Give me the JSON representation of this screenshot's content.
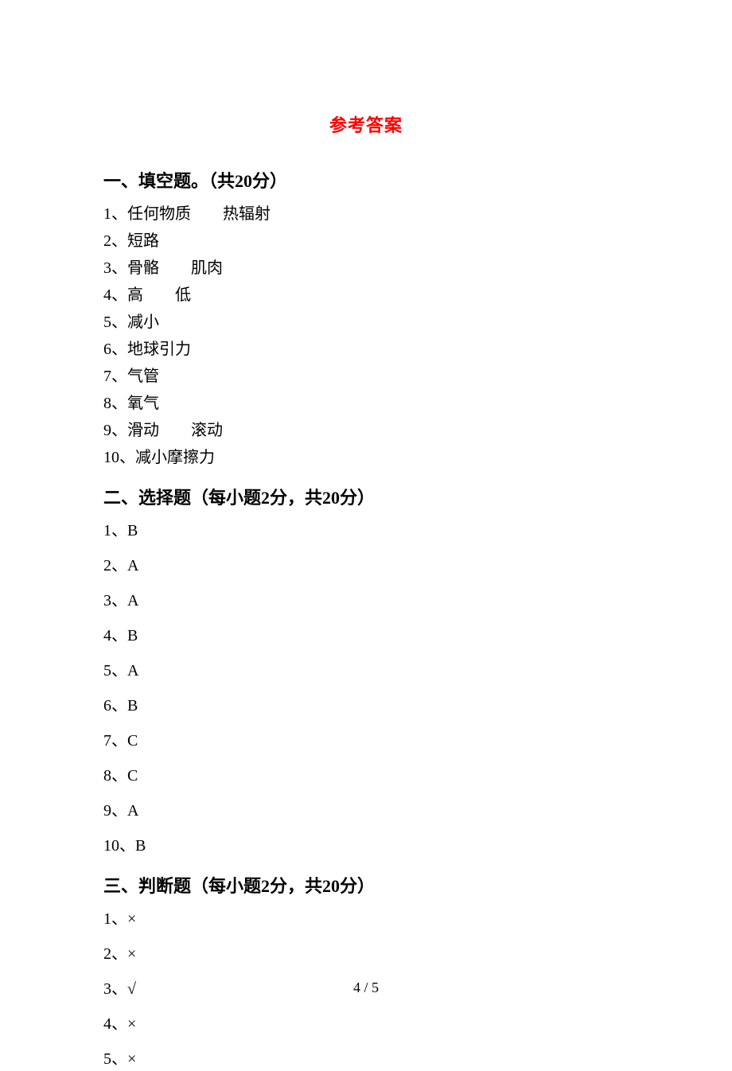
{
  "title": "参考答案",
  "sections": [
    {
      "heading": "一、填空题。（共20分）",
      "spaced": false,
      "items": [
        "1、任何物质　　热辐射",
        "2、短路",
        "3、骨骼　　肌肉",
        "4、高　　低",
        "5、减小",
        "6、地球引力",
        "7、气管",
        "8、氧气",
        "9、滑动　　滚动",
        "10、减小摩擦力"
      ]
    },
    {
      "heading": "二、选择题（每小题2分，共20分）",
      "spaced": true,
      "items": [
        "1、B",
        "2、A",
        "3、A",
        "4、B",
        "5、A",
        "6、B",
        "7、C",
        "8、C",
        "9、A",
        "10、B"
      ]
    },
    {
      "heading": "三、判断题（每小题2分，共20分）",
      "spaced": true,
      "items": [
        "1、×",
        "2、×",
        "3、√",
        "4、×",
        "5、×"
      ]
    }
  ],
  "pageNumber": "4 / 5"
}
